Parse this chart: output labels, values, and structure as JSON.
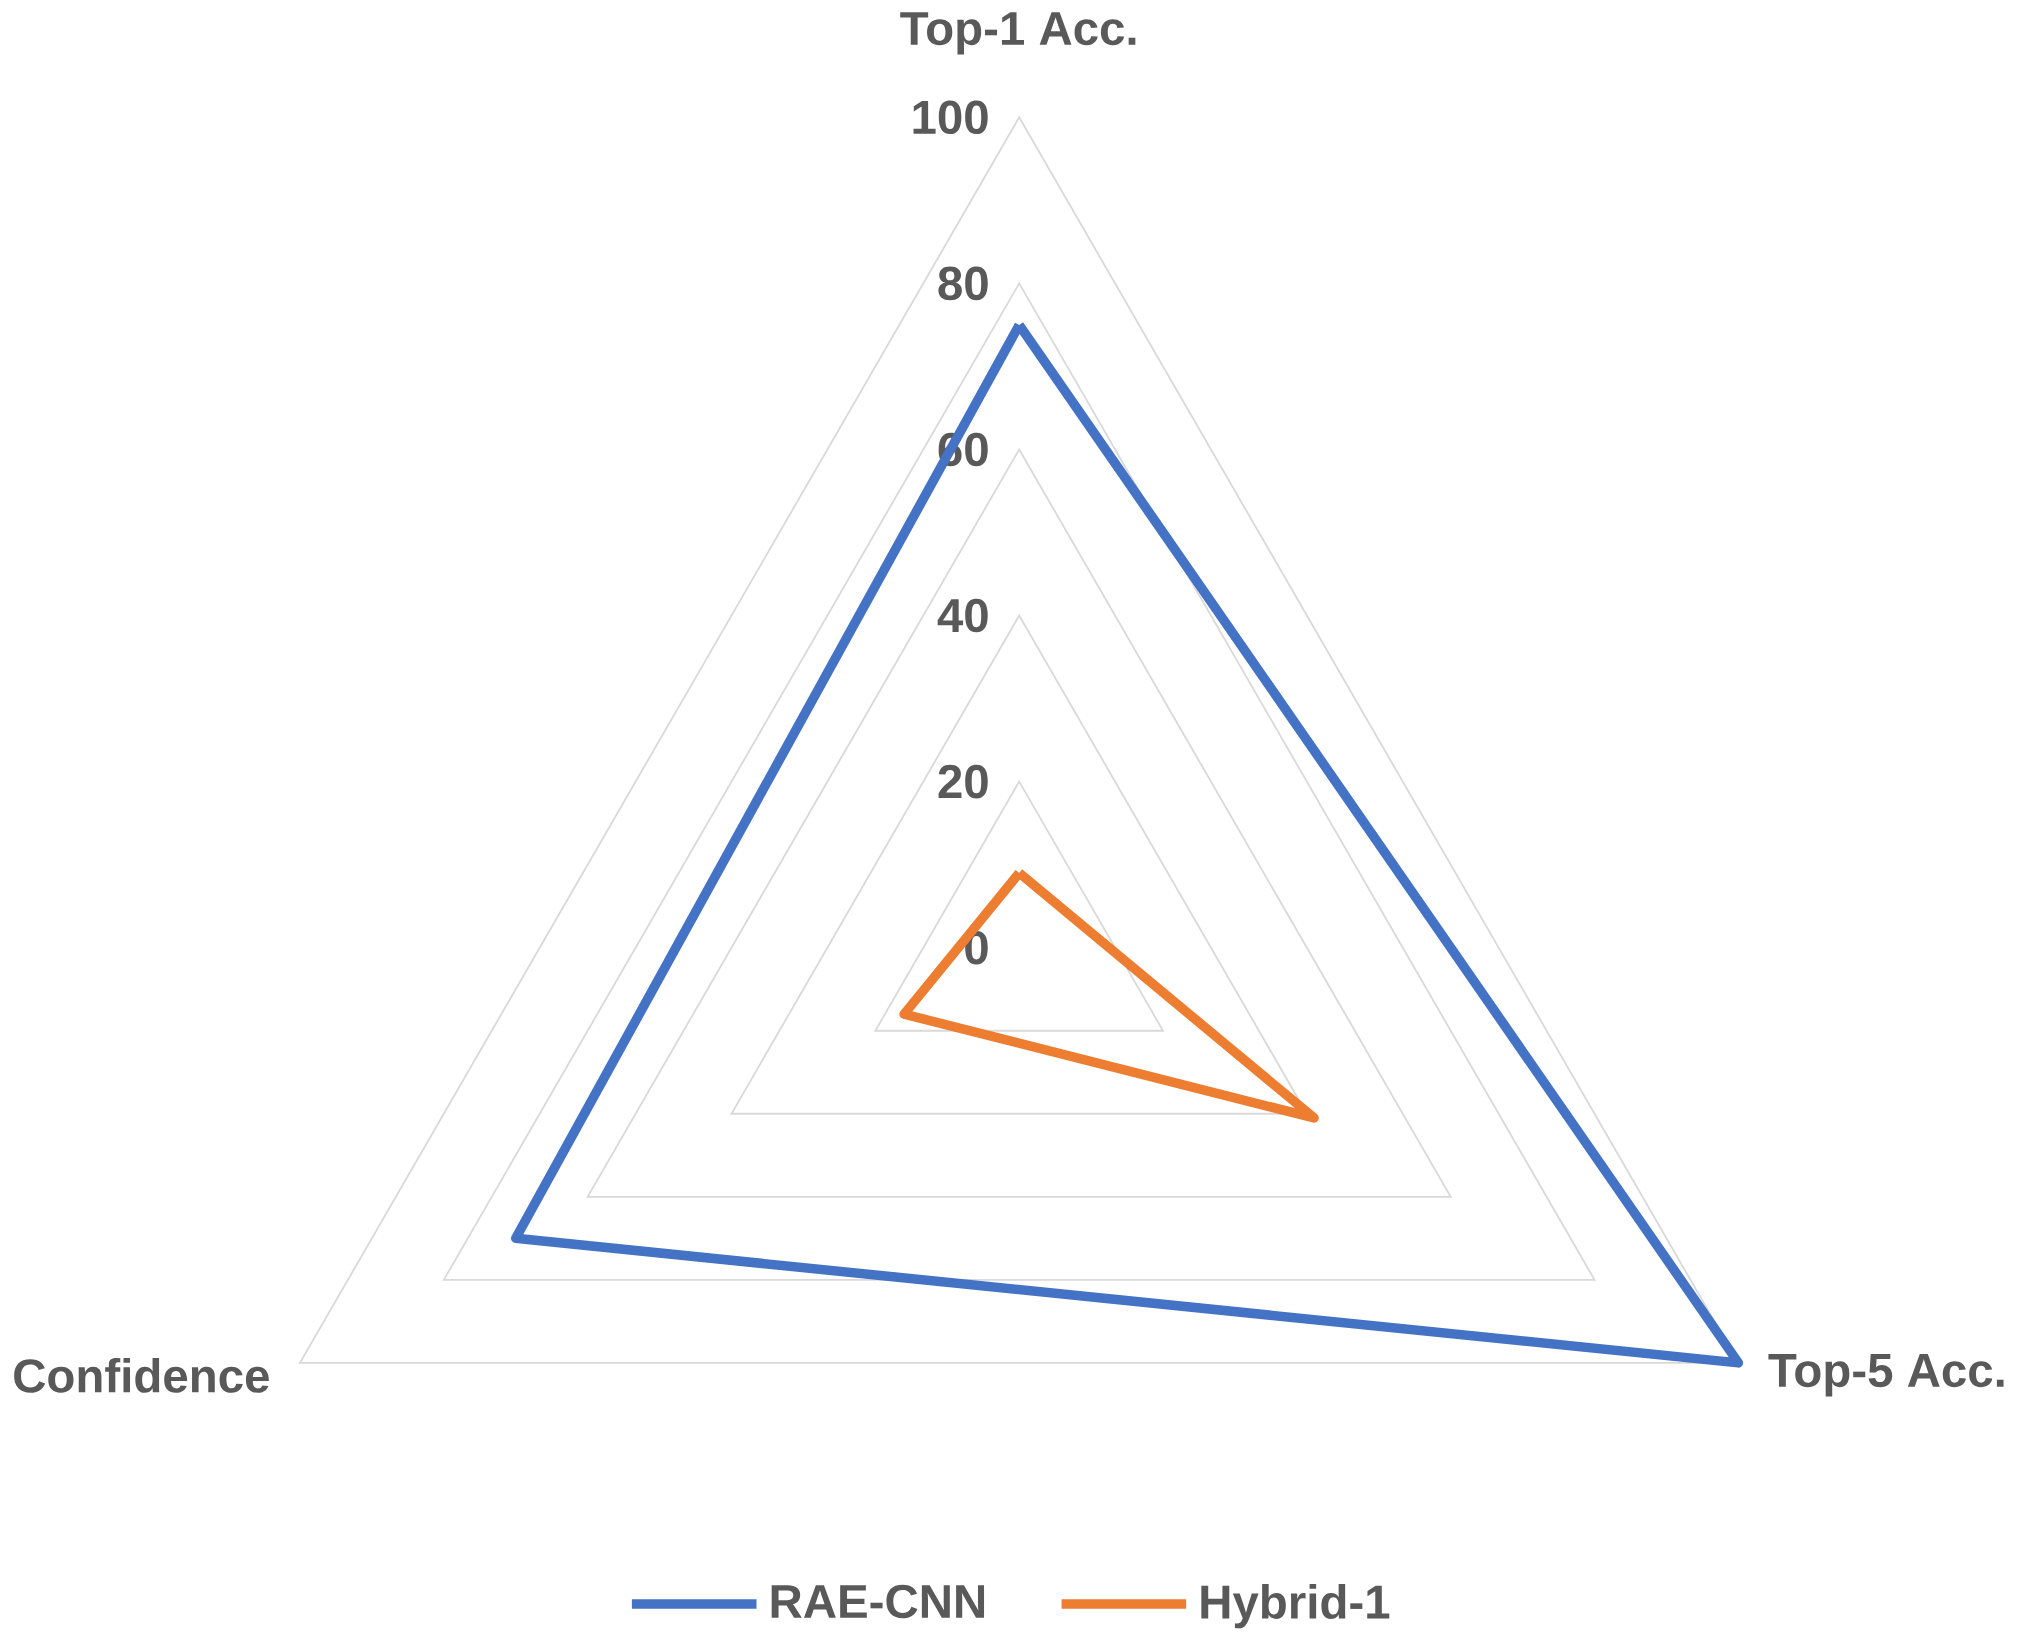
{
  "chart_data": {
    "type": "radar",
    "categories": [
      "Top-1 Acc.",
      "Top-5 Acc.",
      "Confidence"
    ],
    "series": [
      {
        "name": "RAE-CNN",
        "color": "#4472c4",
        "values": [
          75,
          100,
          70
        ]
      },
      {
        "name": "Hybrid-1",
        "color": "#ed7d31",
        "values": [
          9,
          41,
          16
        ]
      }
    ],
    "ylim": [
      0,
      100
    ],
    "yticks": [
      0,
      20,
      40,
      60,
      80,
      100
    ],
    "grid": true,
    "legend": "bottom"
  }
}
